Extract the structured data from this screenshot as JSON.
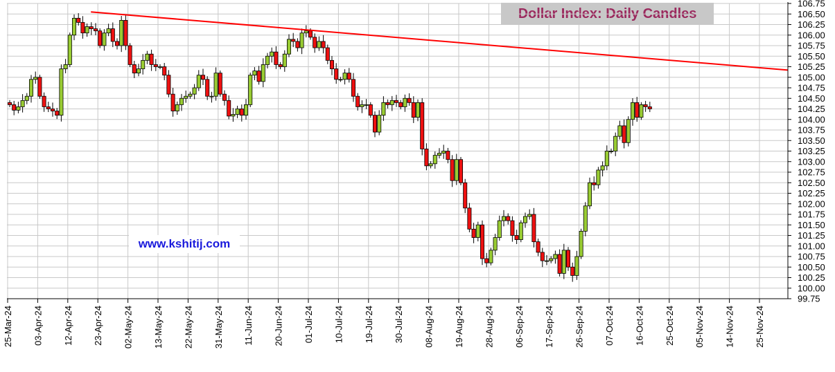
{
  "chart_data": {
    "type": "candlestick",
    "title": "Dollar Index: Daily Candles",
    "watermark": "www.kshitij.com",
    "ylim": [
      99.75,
      106.75
    ],
    "y_ticks": [
      "106.75",
      "106.50",
      "106.25",
      "106.00",
      "105.75",
      "105.50",
      "105.25",
      "105.00",
      "104.75",
      "104.50",
      "104.25",
      "104.00",
      "103.75",
      "103.50",
      "103.25",
      "103.00",
      "102.75",
      "102.50",
      "102.25",
      "102.00",
      "101.75",
      "101.50",
      "101.25",
      "101.00",
      "100.75",
      "100.50",
      "100.25",
      "100.00",
      "99.75"
    ],
    "x_ticks": [
      "25-Mar-24",
      "03-Apr-24",
      "12-Apr-24",
      "23-Apr-24",
      "02-May-24",
      "13-May-24",
      "22-May-24",
      "31-May-24",
      "11-Jun-24",
      "20-Jun-24",
      "01-Jul-24",
      "10-Jul-24",
      "19-Jul-24",
      "30-Jul-24",
      "08-Aug-24",
      "19-Aug-24",
      "28-Aug-24",
      "06-Sep-24",
      "17-Sep-24",
      "26-Sep-24",
      "07-Oct-24",
      "16-Oct-24",
      "25-Oct-24",
      "05-Nov-24",
      "14-Nov-24",
      "25-Nov-24"
    ],
    "trendline": {
      "start": [
        "23-Apr-24",
        106.55
      ],
      "end": [
        "end",
        105.17
      ],
      "color": "#ff0000"
    },
    "colors": {
      "up": "#99cc33",
      "down": "#ee1111",
      "grid": "#c8c8c8",
      "axis": "#000000"
    },
    "closes": [
      104.35,
      104.22,
      104.3,
      104.45,
      104.55,
      104.95,
      105.0,
      104.55,
      104.3,
      104.25,
      104.2,
      104.1,
      105.2,
      105.3,
      106.0,
      106.4,
      106.3,
      106.05,
      106.2,
      106.15,
      106.1,
      105.75,
      106.05,
      106.15,
      105.85,
      105.75,
      106.35,
      105.75,
      105.3,
      105.1,
      105.2,
      105.4,
      105.55,
      105.3,
      105.25,
      105.25,
      105.05,
      104.6,
      104.2,
      104.35,
      104.5,
      104.55,
      104.6,
      104.75,
      105.05,
      104.95,
      104.55,
      104.55,
      105.1,
      104.6,
      104.45,
      104.08,
      104.12,
      104.25,
      104.1,
      104.35,
      105.05,
      105.15,
      104.9,
      105.3,
      105.5,
      105.6,
      105.3,
      105.25,
      105.55,
      105.9,
      105.85,
      105.7,
      106.05,
      106.1,
      105.95,
      105.7,
      105.85,
      105.7,
      105.4,
      105.2,
      104.95,
      104.95,
      105.1,
      104.95,
      104.55,
      104.3,
      104.35,
      104.35,
      104.1,
      103.7,
      104.1,
      104.4,
      104.35,
      104.45,
      104.4,
      104.3,
      104.5,
      104.4,
      104.05,
      104.4,
      103.3,
      102.9,
      102.95,
      103.15,
      103.2,
      103.25,
      103.05,
      102.55,
      103.05,
      102.5,
      101.9,
      101.4,
      101.2,
      101.5,
      100.7,
      100.6,
      100.9,
      101.2,
      101.6,
      101.7,
      101.6,
      101.25,
      101.15,
      101.55,
      101.7,
      101.75,
      101.1,
      100.85,
      100.65,
      100.65,
      100.7,
      100.8,
      100.35,
      100.9,
      100.5,
      100.3,
      100.75,
      101.35,
      101.95,
      102.5,
      102.45,
      102.8,
      102.9,
      103.25,
      103.25,
      103.6,
      103.85,
      103.45,
      104.0,
      104.4,
      104.05,
      104.35,
      104.3,
      104.25
    ]
  }
}
